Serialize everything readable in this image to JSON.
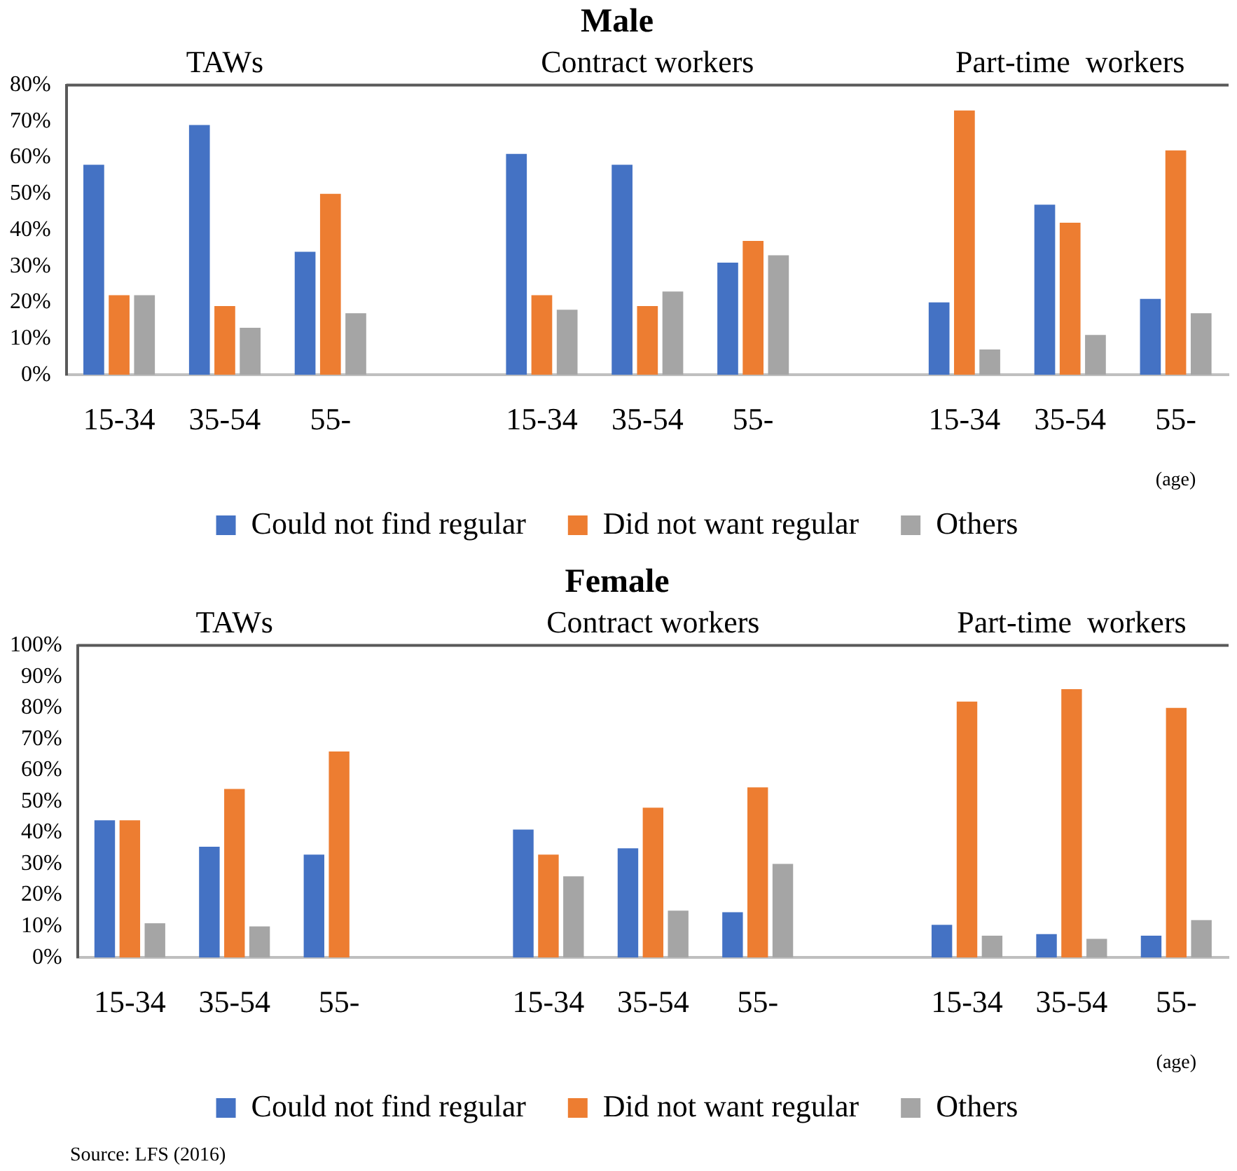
{
  "chart_data": [
    {
      "type": "bar",
      "title": "Male",
      "categories": [
        "15-34",
        "35-54",
        "55-",
        null,
        "15-34",
        "35-54",
        "55-",
        null,
        "15-34",
        "35-54",
        "55-"
      ],
      "series": [
        {
          "name": "Could not find regular",
          "color": "#4472c4",
          "values": [
            58,
            69,
            34,
            null,
            61,
            58,
            31,
            null,
            20,
            47,
            21
          ]
        },
        {
          "name": "Did not want regular",
          "color": "#ed7d31",
          "values": [
            22,
            19,
            50,
            null,
            22,
            19,
            37,
            null,
            73,
            42,
            62
          ]
        },
        {
          "name": "Others",
          "color": "#a5a5a5",
          "values": [
            22,
            13,
            17,
            null,
            18,
            23,
            33,
            null,
            7,
            11,
            17
          ]
        }
      ],
      "ylim": [
        0,
        80
      ],
      "yticks": [
        {
          "value": 0,
          "label": "0%"
        },
        {
          "value": 10,
          "label": "10%"
        },
        {
          "value": 20,
          "label": "20%"
        },
        {
          "value": 30,
          "label": "30%"
        },
        {
          "value": 40,
          "label": "40%"
        },
        {
          "value": 50,
          "label": "50%"
        },
        {
          "value": 60,
          "label": "60%"
        },
        {
          "value": 70,
          "label": "70%"
        },
        {
          "value": 80,
          "label": "80%"
        }
      ],
      "annotations": [
        "TAWs",
        "Contract workers",
        "Part-time  workers",
        "(age)"
      ],
      "legend": "bottom"
    },
    {
      "type": "bar",
      "title": "Female",
      "categories": [
        "15-34",
        "35-54",
        "55-",
        null,
        "15-34",
        "35-54",
        "55-",
        null,
        "15-34",
        "35-54",
        "55-"
      ],
      "series": [
        {
          "name": "Could not find regular",
          "color": "#4472c4",
          "values": [
            44,
            35.5,
            33,
            null,
            41,
            35,
            14.5,
            null,
            10.5,
            7.5,
            7
          ]
        },
        {
          "name": "Did not want regular",
          "color": "#ed7d31",
          "values": [
            44,
            54,
            66,
            null,
            33,
            48,
            54.5,
            null,
            82,
            86,
            80
          ]
        },
        {
          "name": "Others",
          "color": "#a5a5a5",
          "values": [
            11,
            10,
            null,
            null,
            26,
            15,
            30,
            null,
            7,
            6,
            12
          ]
        }
      ],
      "ylim": [
        0,
        100
      ],
      "yticks": [
        {
          "value": 0,
          "label": "0%"
        },
        {
          "value": 10,
          "label": "10%"
        },
        {
          "value": 20,
          "label": "20%"
        },
        {
          "value": 30,
          "label": "30%"
        },
        {
          "value": 40,
          "label": "40%"
        },
        {
          "value": 50,
          "label": "50%"
        },
        {
          "value": 60,
          "label": "60%"
        },
        {
          "value": 70,
          "label": "70%"
        },
        {
          "value": 80,
          "label": "80%"
        },
        {
          "value": 90,
          "label": "90%"
        },
        {
          "value": 100,
          "label": "100%"
        }
      ],
      "annotations": [
        "TAWs",
        "Contract workers",
        "Part-time  workers",
        "(age)",
        "Source: LFS (2016)"
      ],
      "legend": "bottom"
    }
  ]
}
